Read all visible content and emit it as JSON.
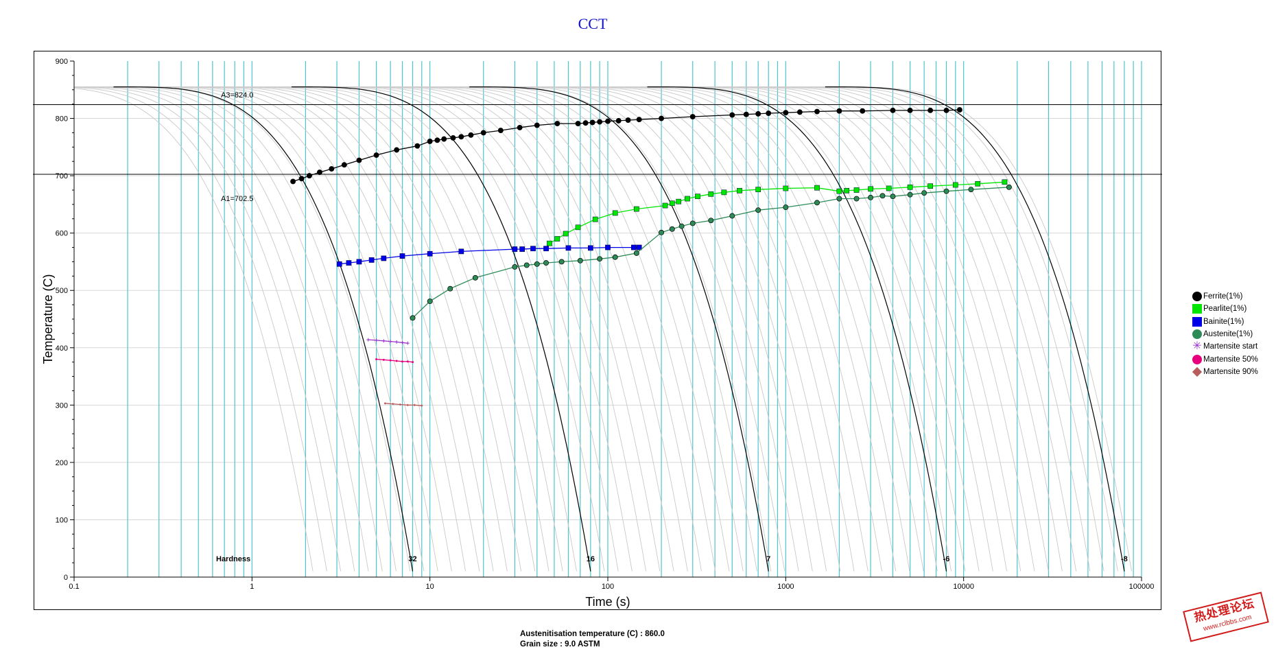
{
  "chart_data": {
    "type": "line",
    "title": "CCT",
    "xlabel": "Time (s)",
    "ylabel": "Temperature (C)",
    "x_scale": "log",
    "xlim": [
      0.1,
      100000
    ],
    "ylim": [
      0,
      900
    ],
    "x_ticks": [
      "0.1",
      "1",
      "10",
      "100",
      "1000",
      "10000",
      "100000"
    ],
    "y_ticks": [
      "0",
      "100",
      "200",
      "300",
      "400",
      "500",
      "600",
      "700",
      "800",
      "900"
    ],
    "grid": true,
    "legend_position": "right",
    "reference_lines": [
      {
        "label": "A3=824.0",
        "value": 824.0
      },
      {
        "label": "A1=702.5",
        "value": 702.5
      }
    ],
    "hardness": {
      "label": "Hardness",
      "values": [
        {
          "time": 8,
          "text": "32"
        },
        {
          "time": 80,
          "text": "16"
        },
        {
          "time": 800,
          "text": "7"
        },
        {
          "time": 8000,
          "text": "-6"
        },
        {
          "time": 80000,
          "text": "-8"
        }
      ]
    },
    "series": [
      {
        "name": "Ferrite(1%)",
        "color": "#000000",
        "marker": "circle",
        "x": [
          1.7,
          1.9,
          2.1,
          2.4,
          2.8,
          3.3,
          4.0,
          5.0,
          6.5,
          8.5,
          10,
          11,
          12,
          13.5,
          15,
          17,
          20,
          25,
          32,
          40,
          52,
          68,
          75,
          82,
          90,
          100,
          115,
          130,
          150,
          200,
          300,
          500,
          600,
          700,
          800,
          1000,
          1200,
          1500,
          2000,
          2700,
          4000,
          5000,
          6500,
          8000,
          9500
        ],
        "y": [
          690,
          695,
          700,
          706,
          712,
          719,
          727,
          736,
          745,
          752,
          760,
          762,
          764,
          766,
          768,
          771,
          775,
          779,
          784,
          788,
          791,
          791,
          792,
          793,
          794,
          795,
          796,
          797,
          798,
          800,
          803,
          806,
          807,
          808,
          809,
          810,
          811,
          812,
          813,
          813,
          814,
          814,
          814,
          814,
          815
        ]
      },
      {
        "name": "Pearlite(1%)",
        "color": "#00e600",
        "marker": "square",
        "x": [
          47,
          52,
          58,
          68,
          85,
          110,
          145,
          210,
          230,
          250,
          280,
          320,
          380,
          450,
          550,
          700,
          1000,
          1500,
          2000,
          2200,
          2500,
          3000,
          3800,
          5000,
          6500,
          9000,
          12000,
          17000
        ],
        "y": [
          582,
          590,
          599,
          610,
          624,
          635,
          642,
          648,
          652,
          655,
          660,
          664,
          668,
          671,
          674,
          676,
          678,
          679,
          673,
          674,
          675,
          677,
          678,
          680,
          682,
          684,
          686,
          689
        ]
      },
      {
        "name": "Bainite(1%)",
        "color": "#0000e6",
        "marker": "square",
        "x": [
          3.1,
          3.5,
          4.0,
          4.7,
          5.5,
          7.0,
          10,
          15,
          30,
          33,
          38,
          45,
          60,
          80,
          100,
          140,
          150
        ],
        "y": [
          546,
          548,
          550,
          553,
          556,
          560,
          564,
          568,
          572,
          572,
          573,
          573,
          574,
          574,
          575,
          575,
          575
        ]
      },
      {
        "name": "Austenite(1%)",
        "color": "#2e8b57",
        "marker": "circle",
        "x": [
          8,
          10,
          13,
          18,
          30,
          35,
          40,
          45,
          55,
          70,
          90,
          110,
          145,
          200,
          230,
          260,
          300,
          380,
          500,
          700,
          1000,
          1500,
          2000,
          2500,
          3000,
          3500,
          4000,
          5000,
          6000,
          8000,
          11000,
          18000
        ],
        "y": [
          452,
          481,
          503,
          522,
          541,
          544,
          546,
          548,
          550,
          552,
          555,
          558,
          565,
          601,
          607,
          612,
          617,
          622,
          630,
          640,
          645,
          653,
          660,
          660,
          662,
          665,
          664,
          667,
          670,
          673,
          676,
          680
        ]
      },
      {
        "name": "Martensite start",
        "color": "#9932cc",
        "marker": "star",
        "x": [
          4.5,
          5.0,
          5.5,
          6.0,
          6.5,
          7.0,
          7.5
        ],
        "y": [
          414,
          413,
          412,
          411,
          410,
          409,
          408
        ]
      },
      {
        "name": "Martensite 50%",
        "color": "#e6007e",
        "marker": "circle",
        "x": [
          5.0,
          5.5,
          6.0,
          6.5,
          7.0,
          7.5,
          8.0
        ],
        "y": [
          380,
          379,
          378,
          377,
          376,
          376,
          375
        ]
      },
      {
        "name": "Martensite 90%",
        "color": "#b85c5c",
        "marker": "diamond",
        "x": [
          5.6,
          6.2,
          6.8,
          7.5,
          8.2,
          9.0
        ],
        "y": [
          303,
          302,
          301,
          300,
          300,
          299
        ]
      }
    ]
  },
  "footer": {
    "line1": "Austenitisation temperature (C) : 860.0",
    "line2": "Grain size : 9.0 ASTM"
  },
  "watermark": {
    "line1": "热处理论坛",
    "line2": "www.rclbbs.com"
  }
}
